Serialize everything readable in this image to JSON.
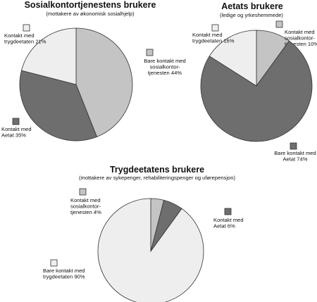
{
  "chart_data": [
    {
      "type": "pie",
      "title": "Sosialkontortjenestens brukere",
      "subtitle": "(mottakere av økonomisk sosialhjelp)",
      "slices": [
        {
          "label": "Bare kontakt med sosialkontor-tjenesten 44%",
          "value": 44,
          "color": "#c4c4c4"
        },
        {
          "label": "Kontakt med Aetat 35%",
          "value": 35,
          "color": "#6e6e6e"
        },
        {
          "label": "Kontakt med trygdeetaten 21%",
          "value": 21,
          "color": "#eeeeee"
        }
      ]
    },
    {
      "type": "pie",
      "title": "Aetats brukere",
      "subtitle": "(ledige og yrkeshemmede)",
      "slices": [
        {
          "label": "Kontakt med sosialkontor-tjenesten 10%",
          "value": 10,
          "color": "#c4c4c4"
        },
        {
          "label": "Bare kontakt med Aetat 74%",
          "value": 74,
          "color": "#6e6e6e"
        },
        {
          "label": "Kontakt med trygdeetaten 16%",
          "value": 16,
          "color": "#eeeeee"
        }
      ]
    },
    {
      "type": "pie",
      "title": "Trygdeetatens brukere",
      "subtitle": "(mottakere av sykepenger, rehabiliteringspenger og uførepensjon)",
      "slices": [
        {
          "label": "Kontakt med sosialkontor-tjenesten 4%",
          "value": 4,
          "color": "#c4c4c4"
        },
        {
          "label": "Kontakt med Aetat 6%",
          "value": 6,
          "color": "#6e6e6e"
        },
        {
          "label": "Bare kontakt med trygdeetaten 90%",
          "value": 90,
          "color": "#eeeeee"
        }
      ]
    }
  ],
  "labels": {
    "p1": [
      [
        "Bare kontakt med",
        "sosialkontor-",
        "tjenesten 44%"
      ],
      [
        "Kontakt med",
        "Aetat 35%"
      ],
      [
        "Kontakt med",
        "trygdeetaten 21%"
      ]
    ],
    "p2": [
      [
        "Kontakt med",
        "sosialkontor-",
        "tjenesten 10%"
      ],
      [
        "Bare kontakt med",
        "Aetat 74%"
      ],
      [
        "Kontakt med",
        "trygdeetaten 16%"
      ]
    ],
    "p3": [
      [
        "Kontakt med",
        "sosialkontor-",
        "tjenesten 4%"
      ],
      [
        "Kontakt med",
        "Aetat 6%"
      ],
      [
        "Bare kontakt med",
        "trygdeetaten 90%"
      ]
    ]
  }
}
